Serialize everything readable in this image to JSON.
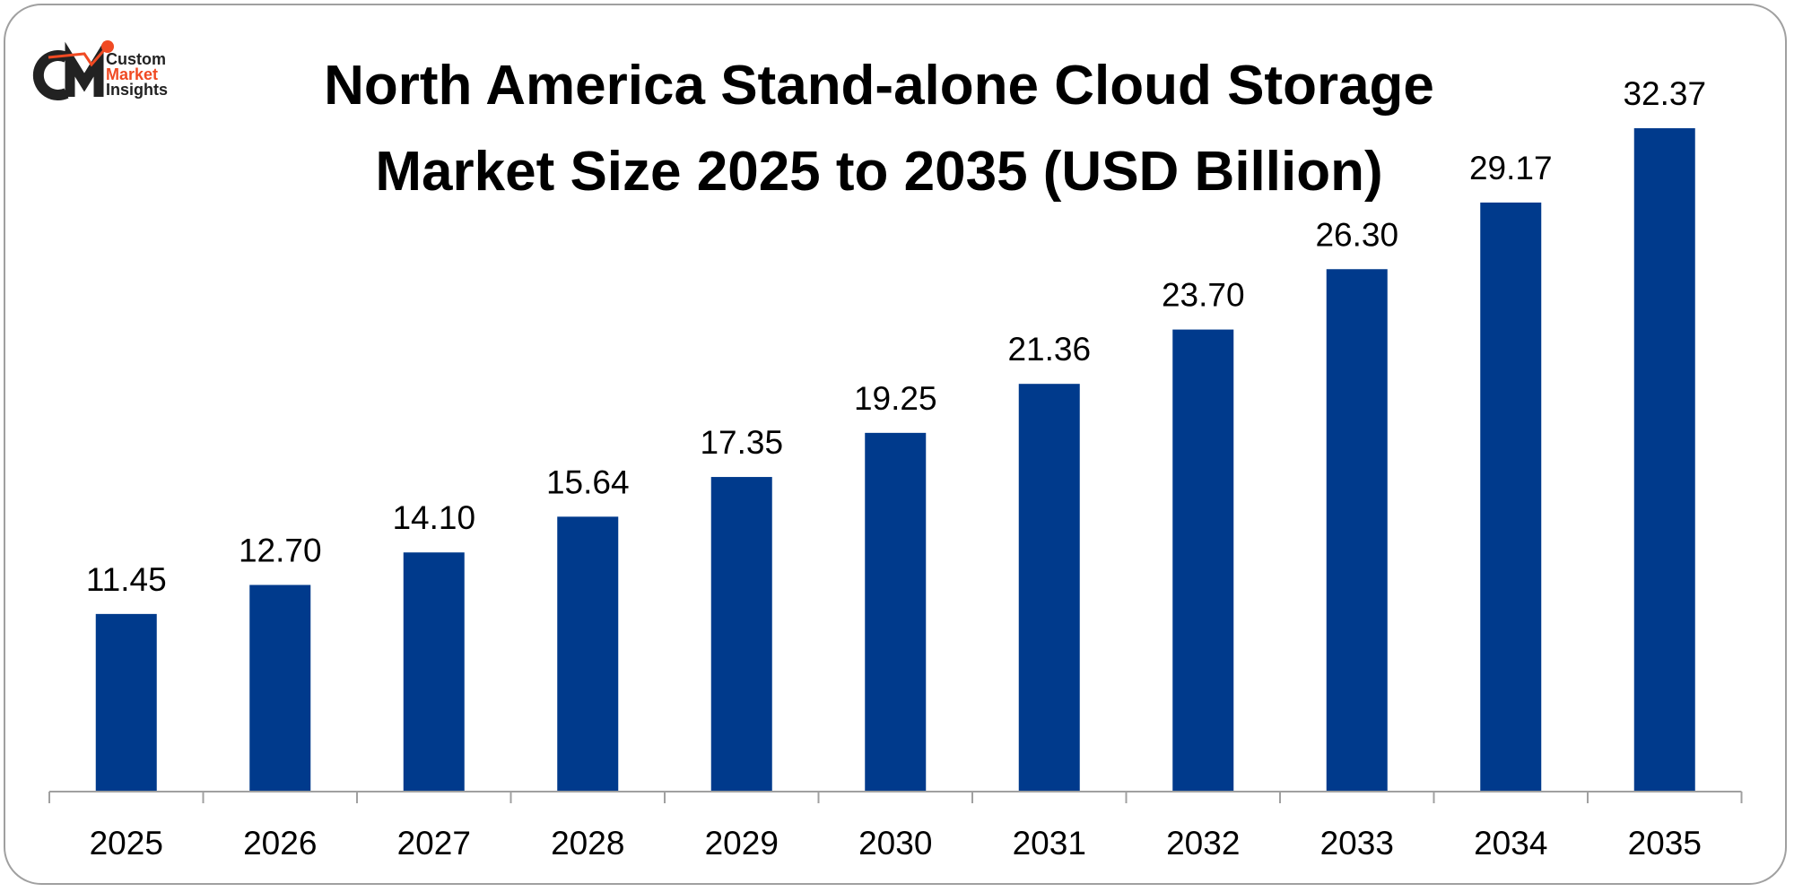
{
  "logo": {
    "line1": "Custom",
    "line2": "Market",
    "line3": "Insights",
    "mark": "CMI"
  },
  "colors": {
    "bar": "#003a8c",
    "axis": "#a0a0a0",
    "logo_dark": "#222222",
    "logo_accent": "#f04a23"
  },
  "chart_data": {
    "type": "bar",
    "title": "North America Stand-alone Cloud Storage Market Size 2025 to 2035 (USD Billion)",
    "title_lines": [
      "North America Stand-alone Cloud Storage",
      "Market Size 2025 to 2035 (USD Billion)"
    ],
    "categories": [
      "2025",
      "2026",
      "2027",
      "2028",
      "2029",
      "2030",
      "2031",
      "2032",
      "2033",
      "2034",
      "2035"
    ],
    "values": [
      11.45,
      12.7,
      14.1,
      15.64,
      17.35,
      19.25,
      21.36,
      23.7,
      26.3,
      29.17,
      32.37
    ],
    "data_labels": [
      "11.45",
      "12.70",
      "14.10",
      "15.64",
      "17.35",
      "19.25",
      "21.36",
      "23.70",
      "26.30",
      "29.17",
      "32.37"
    ],
    "xlabel": "",
    "ylabel": "",
    "ylim": [
      3.8,
      33
    ],
    "grid": false,
    "legend": "none"
  }
}
